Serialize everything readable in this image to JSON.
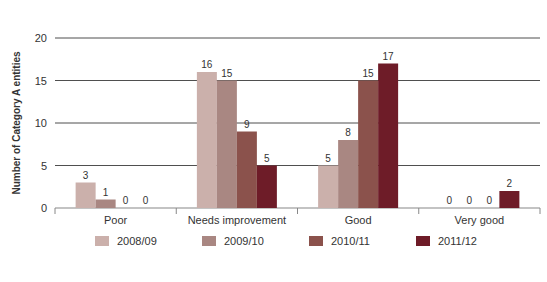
{
  "chart_data": {
    "type": "bar",
    "y_label": "Number of Category A entities",
    "categories": [
      "Poor",
      "Needs improvement",
      "Good",
      "Very good"
    ],
    "series": [
      {
        "name": "2008/09",
        "color": "#cbb0ab",
        "values": [
          3,
          16,
          5,
          0
        ]
      },
      {
        "name": "2009/10",
        "color": "#a98782",
        "values": [
          1,
          15,
          8,
          0
        ]
      },
      {
        "name": "2010/11",
        "color": "#8b524c",
        "values": [
          0,
          9,
          15,
          0
        ]
      },
      {
        "name": "2011/12",
        "color": "#6e1c28",
        "values": [
          0,
          5,
          17,
          2
        ]
      }
    ],
    "ylim": [
      0,
      20
    ],
    "yticks": [
      0,
      5,
      10,
      15,
      20
    ],
    "grid": true,
    "data_labels": true,
    "legend": "bottom"
  }
}
